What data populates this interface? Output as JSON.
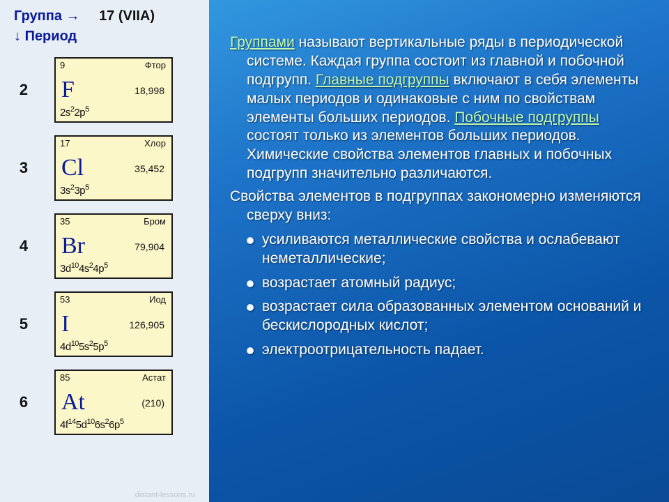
{
  "header": {
    "group_label": "Группа",
    "group_num": "17 (VIIA)",
    "period_label": "Период"
  },
  "elements": [
    {
      "period": "2",
      "z": "9",
      "name": "Фтор",
      "symbol": "F",
      "mass": "18,998",
      "conf_html": "2s<sup>2</sup>2p<sup>5</sup>"
    },
    {
      "period": "3",
      "z": "17",
      "name": "Хлор",
      "symbol": "Cl",
      "mass": "35,452",
      "conf_html": "3s<sup>2</sup>3p<sup>5</sup>"
    },
    {
      "period": "4",
      "z": "35",
      "name": "Бром",
      "symbol": "Br",
      "mass": "79,904",
      "conf_html": "3d<sup>10</sup>4s<sup>2</sup>4p<sup>5</sup>"
    },
    {
      "period": "5",
      "z": "53",
      "name": "Иод",
      "symbol": "I",
      "mass": "126,905",
      "conf_html": "4d<sup>10</sup>5s<sup>2</sup>5p<sup>5</sup>"
    },
    {
      "period": "6",
      "z": "85",
      "name": "Астат",
      "symbol": "At",
      "mass": "(210)",
      "conf_html": "4f<sup>14</sup>5d<sup>10</sup>6s<sup>2</sup>6p<sup>5</sup>"
    }
  ],
  "text": {
    "kw_groups": "Группами",
    "p1a": " называют вертикальные ряды в периодической системе. Каждая группа состоит из главной и побочной подгрупп. ",
    "kw_main": "Главные подгруппы",
    "p1b": " включают в себя элементы малых периодов и одинаковые с ним по свойствам элементы больших периодов. ",
    "kw_side": "Побочные подгруппы",
    "p1c": " состоят только из элементов больших периодов. Химические свойства элементов главных и побочных подгрупп значительно различаются.",
    "p2": "Свойства элементов в подгруппах закономерно изменяются сверху вниз:",
    "b1": "усиливаются металлические свойства и ослабевают неметаллические;",
    "b2": "возрастает атомный радиус;",
    "b3": "возрастает сила образованных элементом оснований и бескислородных кислот;",
    "b4": "электроотрицательность падает."
  },
  "watermark": "distant-lessons.ru",
  "colors": {
    "bg_gradient_from": "#3aa6e8",
    "bg_gradient_to": "#0a4a96",
    "left_panel_bg": "#e8eef5",
    "cell_bg": "#fcf7c8",
    "cell_border": "#1a1a1a",
    "symbol_color": "#0a1a9a",
    "keyword_color": "#c0f8b0",
    "text_color": "#ffffff"
  }
}
